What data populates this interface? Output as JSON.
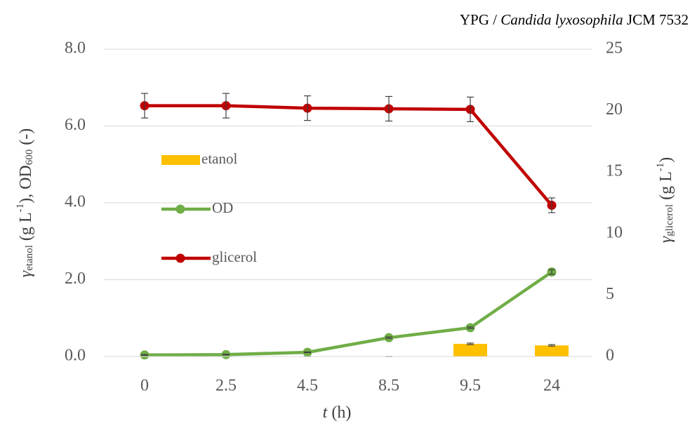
{
  "chart_data": {
    "type": "combo",
    "title_parts": [
      "YPG / ",
      "Candida lyxosophila",
      " JCM 7532"
    ],
    "y_label_parts": [
      "γ",
      "etanol",
      " (g L",
      "-1",
      "), OD",
      "600",
      " (-)"
    ],
    "y2_label_parts": [
      "γ",
      "glicerol",
      " (g L",
      "-1",
      ")"
    ],
    "x_label_parts": [
      "t",
      " (h)"
    ],
    "categories": [
      "0",
      "2.5",
      "4.5",
      "8.5",
      "9.5",
      "24"
    ],
    "series": [
      {
        "name": "etanol",
        "type": "bar",
        "color": "#FFC000",
        "values": [
          0,
          0,
          0,
          0,
          0.33,
          0.29
        ],
        "errors": [
          0,
          0,
          0,
          0,
          0.02,
          0.02
        ]
      },
      {
        "name": "OD",
        "type": "line",
        "color": "#70AD47",
        "values": [
          0.04,
          0.05,
          0.11,
          0.49,
          0.75,
          2.2
        ],
        "errors": [
          0.01,
          0.01,
          0.01,
          0.02,
          0.02,
          0.06
        ]
      },
      {
        "name": "glicerol",
        "type": "line",
        "axis": "y2",
        "color": "#C00000",
        "values": [
          20.4,
          20.4,
          20.2,
          20.15,
          20.1,
          12.3
        ],
        "errors": [
          1.0,
          1.0,
          1.0,
          1.0,
          1.0,
          0.6
        ]
      }
    ],
    "ylim": [
      0,
      8
    ],
    "yticks": [
      {
        "value": 0,
        "label": "0.0"
      },
      {
        "value": 2,
        "label": "2.0"
      },
      {
        "value": 4,
        "label": "4.0"
      },
      {
        "value": 6,
        "label": "6.0"
      },
      {
        "value": 8,
        "label": "8.0"
      }
    ],
    "y2lim": [
      0,
      25
    ],
    "y2ticks": [
      0,
      5,
      10,
      15,
      20,
      25
    ],
    "grid": true,
    "legend": "left"
  }
}
